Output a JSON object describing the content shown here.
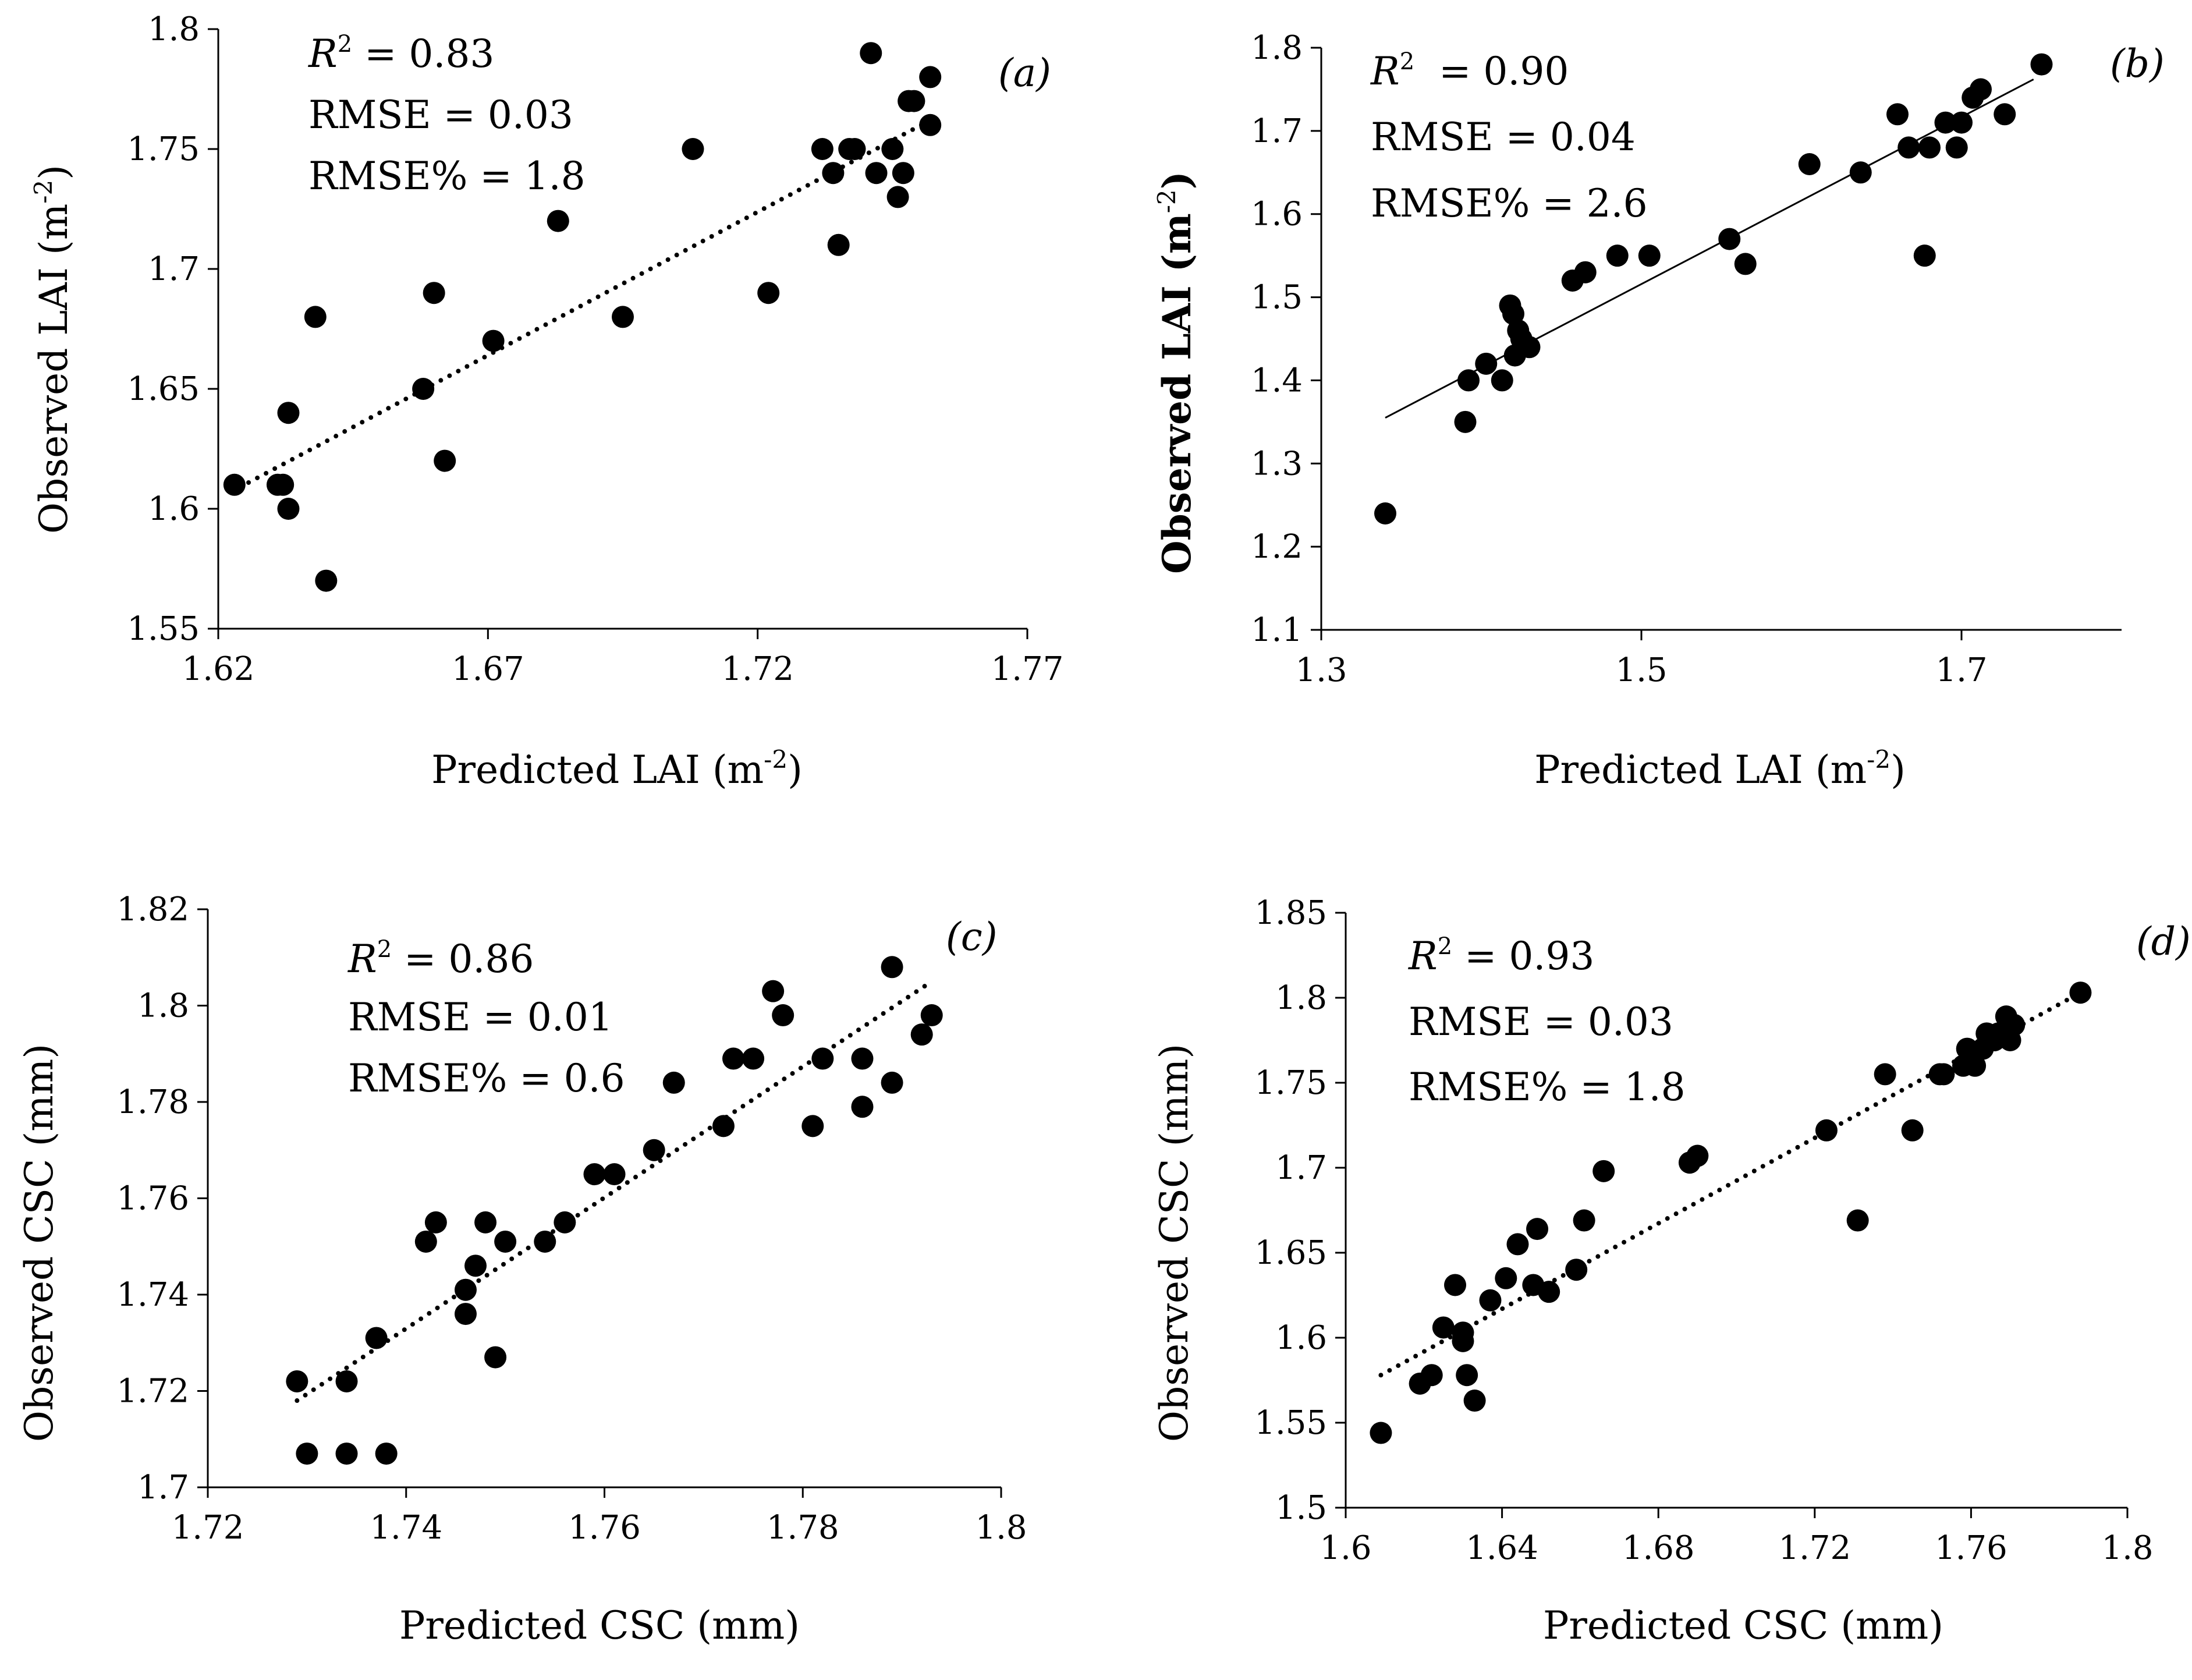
{
  "figure": {
    "colors": {
      "ink": "#000000",
      "background": "#ffffff"
    }
  },
  "chart_data": [
    {
      "type": "scatter",
      "panel": "(a)",
      "xlabel": "Predicted LAI (m-2)",
      "ylabel": "Observed LAI (m-2)",
      "xlabel_parts": {
        "base": "Predicted LAI (m",
        "sup": "-2",
        "close": ")"
      },
      "ylabel_parts": {
        "base": "Observed LAI (m",
        "sup": "-2",
        "close": ")"
      },
      "xlim": [
        1.62,
        1.77
      ],
      "ylim": [
        1.55,
        1.8
      ],
      "xticks": [
        "1.62",
        "1.67",
        "1.72",
        "1.77"
      ],
      "yticks": [
        "1.55",
        "1.6",
        "1.65",
        "1.7",
        "1.75",
        "1.8"
      ],
      "stats": {
        "r2": "R2 = 0.83",
        "r2_sym": "R",
        "r2_sup": "2",
        "r2_val": " = 0.83",
        "rmse": "RMSE = 0.03",
        "rmse_pct": "RMSE% = 1.8"
      },
      "trendline": {
        "style": "dotted",
        "x": [
          1.624,
          1.752
        ],
        "y": [
          1.609,
          1.762
        ]
      },
      "x": [
        1.623,
        1.631,
        1.632,
        1.633,
        1.633,
        1.638,
        1.64,
        1.658,
        1.66,
        1.662,
        1.671,
        1.683,
        1.695,
        1.708,
        1.722,
        1.732,
        1.734,
        1.735,
        1.737,
        1.738,
        1.741,
        1.742,
        1.745,
        1.746,
        1.747,
        1.748,
        1.749,
        1.752,
        1.752
      ],
      "y": [
        1.61,
        1.61,
        1.61,
        1.64,
        1.6,
        1.68,
        1.57,
        1.65,
        1.69,
        1.62,
        1.67,
        1.72,
        1.68,
        1.75,
        1.69,
        1.75,
        1.74,
        1.71,
        1.75,
        1.75,
        1.79,
        1.74,
        1.75,
        1.73,
        1.74,
        1.77,
        1.77,
        1.78,
        1.76
      ]
    },
    {
      "type": "scatter",
      "panel": "(b)",
      "xlabel": "Predicted LAI (m-2)",
      "ylabel": "Observed LAI (m-2)",
      "xlabel_parts": {
        "base": "Predicted LAI (m",
        "sup": "-2",
        "close": ")"
      },
      "ylabel_parts": {
        "base": "Observed LAI (m",
        "sup": "-2",
        "close": ")"
      },
      "xlim": [
        1.3,
        1.8
      ],
      "ylim": [
        1.1,
        1.8
      ],
      "xticks": [
        "1.3",
        "1.5",
        "1.7"
      ],
      "yticks": [
        "1.1",
        "1.2",
        "1.3",
        "1.4",
        "1.5",
        "1.6",
        "1.7",
        "1.8"
      ],
      "stats": {
        "r2": "R2  = 0.90",
        "r2_sym": "R",
        "r2_sup": "2",
        "r2_val": "  = 0.90",
        "rmse": "RMSE = 0.04",
        "rmse_pct": "RMSE% = 2.6"
      },
      "trendline": {
        "style": "solid",
        "x": [
          1.34,
          1.745
        ],
        "y": [
          1.355,
          1.762
        ]
      },
      "x": [
        1.34,
        1.39,
        1.392,
        1.403,
        1.413,
        1.418,
        1.42,
        1.421,
        1.423,
        1.425,
        1.43,
        1.457,
        1.465,
        1.485,
        1.505,
        1.555,
        1.565,
        1.605,
        1.637,
        1.66,
        1.667,
        1.677,
        1.68,
        1.69,
        1.697,
        1.7,
        1.707,
        1.712,
        1.727,
        1.75
      ],
      "y": [
        1.24,
        1.35,
        1.4,
        1.42,
        1.4,
        1.49,
        1.48,
        1.43,
        1.46,
        1.45,
        1.44,
        1.52,
        1.53,
        1.55,
        1.55,
        1.57,
        1.54,
        1.66,
        1.65,
        1.72,
        1.68,
        1.55,
        1.68,
        1.71,
        1.68,
        1.71,
        1.74,
        1.75,
        1.72,
        1.78
      ]
    },
    {
      "type": "scatter",
      "panel": "(c)",
      "xlabel": "Predicted CSC (mm)",
      "ylabel": "Observed CSC (mm)",
      "xlim": [
        1.72,
        1.8
      ],
      "ylim": [
        1.7,
        1.82
      ],
      "xticks": [
        "1.72",
        "1.74",
        "1.76",
        "1.78",
        "1.8"
      ],
      "yticks": [
        "1.7",
        "1.72",
        "1.74",
        "1.76",
        "1.78",
        "1.8",
        "1.82"
      ],
      "stats": {
        "r2": "R2 = 0.86",
        "r2_sym": "R",
        "r2_sup": "2",
        "r2_val": " = 0.86",
        "rmse": "RMSE = 0.01",
        "rmse_pct": "RMSE% = 0.6"
      },
      "trendline": {
        "style": "dotted",
        "x": [
          1.729,
          1.793
        ],
        "y": [
          1.718,
          1.805
        ]
      },
      "x": [
        1.729,
        1.73,
        1.734,
        1.734,
        1.737,
        1.738,
        1.742,
        1.743,
        1.746,
        1.746,
        1.747,
        1.748,
        1.749,
        1.75,
        1.754,
        1.756,
        1.759,
        1.761,
        1.765,
        1.767,
        1.772,
        1.773,
        1.775,
        1.777,
        1.778,
        1.781,
        1.782,
        1.786,
        1.786,
        1.789,
        1.789,
        1.792,
        1.793
      ],
      "y": [
        1.722,
        1.707,
        1.722,
        1.707,
        1.731,
        1.707,
        1.751,
        1.755,
        1.741,
        1.736,
        1.746,
        1.755,
        1.727,
        1.751,
        1.751,
        1.755,
        1.765,
        1.765,
        1.77,
        1.784,
        1.775,
        1.789,
        1.789,
        1.803,
        1.798,
        1.775,
        1.789,
        1.789,
        1.779,
        1.808,
        1.784,
        1.794,
        1.798
      ]
    },
    {
      "type": "scatter",
      "panel": "(d)",
      "xlabel": "Predicted CSC (mm)",
      "ylabel": "Observed CSC (mm)",
      "xlim": [
        1.6,
        1.8
      ],
      "ylim": [
        1.5,
        1.85
      ],
      "xticks": [
        "1.6",
        "1.64",
        "1.68",
        "1.72",
        "1.76",
        "1.8"
      ],
      "yticks": [
        "1.5",
        "1.55",
        "1.6",
        "1.65",
        "1.7",
        "1.75",
        "1.8",
        "1.85"
      ],
      "stats": {
        "r2": "R2 = 0.93",
        "r2_sym": "R",
        "r2_sup": "2",
        "r2_val": " = 0.93",
        "rmse": "RMSE = 0.03",
        "rmse_pct": "RMSE% = 1.8"
      },
      "trendline": {
        "style": "dotted",
        "x": [
          1.609,
          1.788
        ],
        "y": [
          1.578,
          1.803
        ]
      },
      "x": [
        1.609,
        1.619,
        1.622,
        1.625,
        1.628,
        1.63,
        1.63,
        1.631,
        1.633,
        1.637,
        1.641,
        1.644,
        1.648,
        1.649,
        1.652,
        1.659,
        1.661,
        1.666,
        1.688,
        1.69,
        1.723,
        1.731,
        1.738,
        1.745,
        1.752,
        1.753,
        1.758,
        1.759,
        1.761,
        1.763,
        1.764,
        1.766,
        1.767,
        1.768,
        1.769,
        1.77,
        1.771,
        1.788
      ],
      "y": [
        1.544,
        1.573,
        1.578,
        1.606,
        1.631,
        1.603,
        1.598,
        1.578,
        1.563,
        1.622,
        1.635,
        1.655,
        1.631,
        1.664,
        1.627,
        1.64,
        1.669,
        1.698,
        1.703,
        1.707,
        1.722,
        1.669,
        1.755,
        1.722,
        1.755,
        1.755,
        1.76,
        1.77,
        1.76,
        1.77,
        1.779,
        1.775,
        1.779,
        1.779,
        1.789,
        1.775,
        1.784,
        1.803
      ]
    }
  ]
}
